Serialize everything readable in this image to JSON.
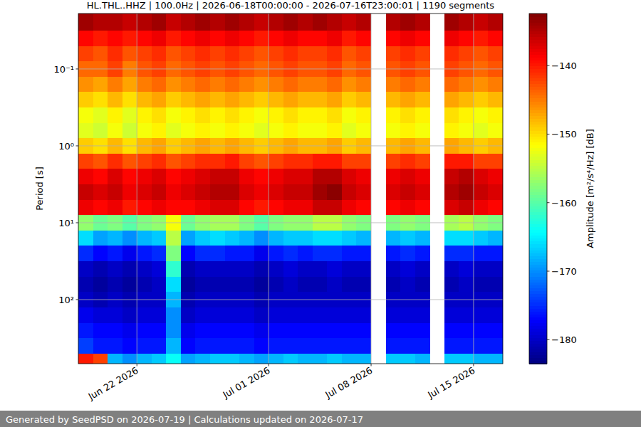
{
  "chart_data": {
    "type": "heatmap",
    "title": "HL.THL..HHZ | 100.0Hz | 2026-06-18T00:00:00 - 2026-07-16T23:00:01 | 1190 segments",
    "footer": "Generated by SeedPSD on 2026-07-19 | Calculations updated on 2026-07-17",
    "ylabel": "Period [s]",
    "log": "y",
    "grid": true,
    "xlim": [
      "2026-06-18",
      "2026-07-17"
    ],
    "xticks": [
      {
        "value": "2026-06-22",
        "label": "Jun 22 2026"
      },
      {
        "value": "2026-07-01",
        "label": "Jul 01 2026"
      },
      {
        "value": "2026-07-08",
        "label": "Jul 08 2026"
      },
      {
        "value": "2026-07-15",
        "label": "Jul 15 2026"
      }
    ],
    "ylim": [
      681,
      0.019
    ],
    "yticks": [
      {
        "value": 0.1,
        "label": "10⁻¹"
      },
      {
        "value": 1,
        "label": "10⁰"
      },
      {
        "value": 10,
        "label": "10¹"
      },
      {
        "value": 100,
        "label": "10²"
      }
    ],
    "x": [
      "2026-06-18",
      "2026-06-19",
      "2026-06-20",
      "2026-06-21",
      "2026-06-22",
      "2026-06-23",
      "2026-06-24",
      "2026-06-25",
      "2026-06-26",
      "2026-06-27",
      "2026-06-28",
      "2026-06-29",
      "2026-06-30",
      "2026-07-01",
      "2026-07-02",
      "2026-07-03",
      "2026-07-04",
      "2026-07-05",
      "2026-07-06",
      "2026-07-07",
      "2026-07-08",
      "2026-07-09",
      "2026-07-10",
      "2026-07-11",
      "2026-07-12",
      "2026-07-13",
      "2026-07-14",
      "2026-07-15",
      "2026-07-16"
    ],
    "y": [
      0.025,
      0.04,
      0.063,
      0.1,
      0.16,
      0.25,
      0.4,
      0.63,
      1,
      1.6,
      2.5,
      4,
      6.3,
      10,
      16,
      25,
      40,
      63,
      100,
      160,
      250,
      400,
      630
    ],
    "cells": [
      [
        -134,
        -135,
        -135,
        -136,
        -135,
        -134,
        -136,
        -135,
        -134,
        -135,
        -134,
        -135,
        -136,
        -135,
        -134,
        -135,
        -134,
        -135,
        -136,
        -135,
        null,
        -135,
        -134,
        -135,
        null,
        -134,
        -135,
        -136,
        -135
      ],
      [
        -139,
        -140,
        -139,
        -140,
        -139,
        -138,
        -140,
        -139,
        -138,
        -139,
        -138,
        -139,
        -140,
        -139,
        -138,
        -139,
        -139,
        -138,
        -140,
        -139,
        null,
        -139,
        -138,
        -139,
        null,
        -138,
        -139,
        -140,
        -139
      ],
      [
        -142,
        -143,
        -141,
        -143,
        -142,
        -141,
        -143,
        -142,
        -141,
        -142,
        -141,
        -142,
        -143,
        -142,
        -141,
        -142,
        -142,
        -141,
        -143,
        -142,
        null,
        -142,
        -141,
        -142,
        null,
        -141,
        -142,
        -143,
        -142
      ],
      [
        -144,
        -144,
        -142,
        -145,
        -143,
        -142,
        -144,
        -143,
        -142,
        -143,
        -142,
        -143,
        -144,
        -143,
        -142,
        -143,
        -143,
        -142,
        -144,
        -143,
        null,
        -143,
        -142,
        -143,
        null,
        -142,
        -143,
        -144,
        -143
      ],
      [
        -146,
        -147,
        -145,
        -147,
        -145,
        -144,
        -146,
        -145,
        -144,
        -145,
        -144,
        -145,
        -146,
        -145,
        -144,
        -145,
        -145,
        -144,
        -146,
        -145,
        null,
        -145,
        -144,
        -145,
        null,
        -144,
        -145,
        -146,
        -145
      ],
      [
        -149,
        -150,
        -148,
        -150,
        -148,
        -147,
        -149,
        -148,
        -147,
        -148,
        -147,
        -148,
        -149,
        -148,
        -147,
        -148,
        -148,
        -147,
        -149,
        -148,
        null,
        -148,
        -147,
        -148,
        null,
        -147,
        -148,
        -149,
        -148
      ],
      [
        -152,
        -153,
        -151,
        -153,
        -151,
        -150,
        -152,
        -151,
        -150,
        -151,
        -150,
        -151,
        -152,
        -151,
        -150,
        -151,
        -151,
        -150,
        -152,
        -151,
        null,
        -151,
        -150,
        -151,
        null,
        -150,
        -151,
        -152,
        -151
      ],
      [
        -153,
        -154,
        -152,
        -154,
        -152,
        -151,
        -153,
        -152,
        -151,
        -152,
        -151,
        -152,
        -153,
        -152,
        -151,
        -152,
        -152,
        -151,
        -153,
        -152,
        null,
        -152,
        -151,
        -152,
        null,
        -151,
        -152,
        -153,
        -152
      ],
      [
        -149,
        -150,
        -148,
        -150,
        -148,
        -147,
        -149,
        -148,
        -147,
        -148,
        -147,
        -148,
        -149,
        -148,
        -147,
        -148,
        -148,
        -147,
        -149,
        -148,
        null,
        -148,
        -147,
        -148,
        null,
        -147,
        -148,
        -149,
        -148
      ],
      [
        -142,
        -143,
        -141,
        -143,
        -142,
        -141,
        -143,
        -142,
        -141,
        -141,
        -140,
        -142,
        -143,
        -142,
        -141,
        -141,
        -140,
        -140,
        -142,
        -142,
        null,
        -142,
        -141,
        -142,
        null,
        -140,
        -140,
        -142,
        -142
      ],
      [
        -138,
        -139,
        -137,
        -139,
        -138,
        -137,
        -139,
        -138,
        -137,
        -136,
        -136,
        -138,
        -139,
        -138,
        -137,
        -137,
        -135,
        -135,
        -137,
        -138,
        null,
        -138,
        -137,
        -138,
        null,
        -136,
        -135,
        -137,
        -138
      ],
      [
        -136,
        -137,
        -136,
        -138,
        -137,
        -136,
        -138,
        -137,
        -136,
        -135,
        -135,
        -137,
        -138,
        -137,
        -136,
        -136,
        -134,
        -133,
        -136,
        -137,
        null,
        -137,
        -136,
        -137,
        null,
        -135,
        -134,
        -136,
        -137
      ],
      [
        -138,
        -139,
        -138,
        -140,
        -139,
        -138,
        -139,
        -139,
        -138,
        -137,
        -137,
        -139,
        -140,
        -139,
        -138,
        -138,
        -136,
        -136,
        -138,
        -139,
        null,
        -139,
        -138,
        -139,
        null,
        -137,
        -136,
        -138,
        -139
      ],
      [
        -157,
        -159,
        -158,
        -160,
        -158,
        -157,
        -152,
        -159,
        -157,
        -156,
        -156,
        -158,
        -160,
        -158,
        -157,
        -157,
        -155,
        -155,
        -157,
        -158,
        null,
        -158,
        -157,
        -158,
        null,
        -156,
        -155,
        -157,
        -158
      ],
      [
        -166,
        -169,
        -168,
        -170,
        -168,
        -167,
        -155,
        -169,
        -167,
        -166,
        -167,
        -168,
        -170,
        -168,
        -167,
        -167,
        -166,
        -166,
        -167,
        -168,
        null,
        -168,
        -167,
        -168,
        null,
        -166,
        -166,
        -167,
        -168
      ],
      [
        -175,
        -177,
        -176,
        -178,
        -176,
        -175,
        -158,
        -177,
        -175,
        -175,
        -176,
        -176,
        -178,
        -176,
        -175,
        -176,
        -175,
        -175,
        -176,
        -176,
        null,
        -176,
        -175,
        -176,
        null,
        -175,
        -175,
        -176,
        -176
      ],
      [
        -180,
        -181,
        -180,
        -181,
        -180,
        -179,
        -162,
        -181,
        -180,
        -180,
        -180,
        -180,
        -181,
        -180,
        -179,
        -180,
        -180,
        -179,
        -180,
        -180,
        null,
        -180,
        -179,
        -180,
        null,
        -180,
        -179,
        -180,
        -180
      ],
      [
        -181,
        -182,
        -181,
        -182,
        -181,
        -180,
        -166,
        -182,
        -181,
        -181,
        -181,
        -181,
        -182,
        -181,
        -180,
        -181,
        -181,
        -180,
        -181,
        -181,
        null,
        -181,
        -180,
        -181,
        null,
        -181,
        -180,
        -181,
        -181
      ],
      [
        -180,
        -181,
        -180,
        -181,
        -180,
        -180,
        -168,
        -181,
        -180,
        -180,
        -180,
        -180,
        -181,
        -180,
        -180,
        -180,
        -180,
        -180,
        -180,
        -180,
        null,
        -180,
        -180,
        -180,
        null,
        -180,
        -180,
        -180,
        -180
      ],
      [
        -178,
        -179,
        -179,
        -180,
        -179,
        -179,
        -170,
        -180,
        -179,
        -179,
        -179,
        -179,
        -180,
        -179,
        -179,
        -179,
        -179,
        -179,
        -179,
        -179,
        null,
        -179,
        -179,
        -179,
        null,
        -179,
        -179,
        -179,
        -179
      ],
      [
        -176,
        -177,
        -177,
        -178,
        -177,
        -177,
        -170,
        -178,
        -177,
        -177,
        -177,
        -177,
        -178,
        -177,
        -177,
        -177,
        -177,
        -177,
        -177,
        -177,
        null,
        -177,
        -177,
        -177,
        null,
        -177,
        -177,
        -177,
        -177
      ],
      [
        -174,
        -176,
        -176,
        -177,
        -176,
        -176,
        -168,
        -177,
        -176,
        -176,
        -176,
        -176,
        -177,
        -176,
        -176,
        -176,
        -176,
        -176,
        -176,
        -176,
        null,
        -176,
        -176,
        -176,
        null,
        -176,
        -176,
        -176,
        -176
      ],
      [
        -140,
        -142,
        -168,
        -170,
        -168,
        -167,
        -164,
        -169,
        -168,
        -167,
        -167,
        -168,
        -169,
        -168,
        -167,
        -168,
        -168,
        -167,
        -168,
        -168,
        null,
        -167,
        -167,
        -168,
        null,
        -167,
        -167,
        -168,
        -168
      ]
    ],
    "colorbar": {
      "label": "Amplitude [m²/s⁴/Hz] [dB]",
      "range": [
        -183.5,
        -132.4
      ],
      "ticks": [
        {
          "value": -140,
          "label": "−140"
        },
        {
          "value": -150,
          "label": "−150"
        },
        {
          "value": -160,
          "label": "−160"
        },
        {
          "value": -170,
          "label": "−170"
        },
        {
          "value": -180,
          "label": "−180"
        }
      ]
    }
  }
}
